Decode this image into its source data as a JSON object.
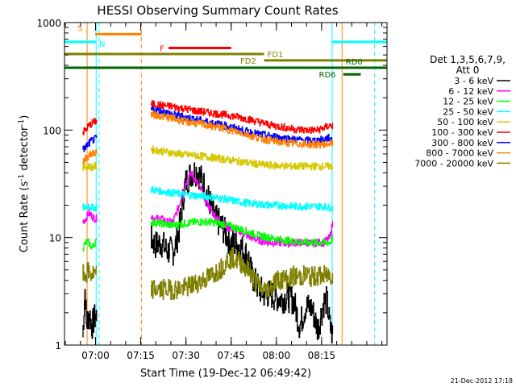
{
  "chart_data": {
    "type": "line",
    "title": "HESSI Observing Summary Count Rates",
    "xlabel": "Start Time (19-Dec-12 06:49:42)",
    "ylabel_prefix": "Count Rate (s",
    "ylabel_sup": "-1",
    "ylabel_mid": " detector",
    "ylabel_sup2": "-1",
    "ylabel_suffix": ")",
    "yscale": "log",
    "x_unit": "minutes after 06:49:42",
    "xlim": [
      0,
      107
    ],
    "ylim": [
      1,
      1000
    ],
    "x_ticks": [
      {
        "value": 10.3,
        "label": "07:00"
      },
      {
        "value": 25.3,
        "label": "07:15"
      },
      {
        "value": 40.3,
        "label": "07:30"
      },
      {
        "value": 55.3,
        "label": "07:45"
      },
      {
        "value": 70.3,
        "label": "08:00"
      },
      {
        "value": 85.3,
        "label": "08:15"
      }
    ],
    "y_ticks": [
      {
        "value": 1,
        "label": "1"
      },
      {
        "value": 10,
        "label": "10"
      },
      {
        "value": 100,
        "label": "100"
      },
      {
        "value": 1000,
        "label": "1000"
      }
    ],
    "legend_header": [
      "Det 1,3,5,6,7,9,",
      "Att 0"
    ],
    "date_stamp": "21-Dec-2012 17:18",
    "gaps": [
      [
        10.8,
        28.6
      ],
      [
        89.0,
        107
      ]
    ],
    "series": [
      {
        "name": "3 - 6 keV",
        "color": "#000000",
        "x": [
          6.0,
          6.8,
          7.2,
          8.2,
          9.0,
          10.0,
          28.6,
          30,
          32,
          34,
          36,
          37,
          38,
          39,
          40,
          42,
          44,
          46,
          48,
          50,
          52,
          54,
          55,
          58,
          61,
          62,
          64,
          66,
          68,
          70,
          72,
          74,
          76,
          78,
          80,
          82,
          84,
          86,
          87,
          88.0,
          89.0
        ],
        "y": [
          1.2,
          3.5,
          1.5,
          2.0,
          1.5,
          1.8,
          10,
          8.5,
          9,
          7.5,
          7.5,
          9,
          12,
          20,
          32,
          40,
          42,
          32,
          22,
          15,
          13,
          10,
          9,
          8.5,
          6.5,
          4.5,
          3.5,
          3,
          3,
          2.8,
          2.7,
          2.8,
          2.6,
          1.5,
          2.3,
          2.2,
          1.4,
          2.5,
          2.6,
          1.5,
          1.2
        ]
      },
      {
        "name": "6 - 12 keV",
        "color": "#ff00ff",
        "x": [
          6.0,
          7.0,
          8.0,
          9.0,
          10.0,
          28.6,
          30,
          32,
          34,
          36,
          38,
          40,
          42,
          44,
          46,
          48,
          50,
          52,
          54,
          56,
          58,
          60,
          62,
          64,
          66,
          68,
          70,
          72,
          74,
          76,
          78,
          80,
          82,
          84,
          86,
          88.0,
          89.0
        ],
        "y": [
          14,
          15,
          17,
          16,
          15,
          16,
          15,
          15,
          14,
          14,
          20,
          32,
          40,
          32,
          25,
          19,
          15.5,
          14,
          12.5,
          12,
          11.5,
          10.5,
          10,
          9.5,
          9.2,
          9,
          9,
          9,
          8.8,
          9,
          9,
          9,
          8.8,
          9,
          9,
          10,
          14
        ]
      },
      {
        "name": "12 - 25 keV",
        "color": "#00ff00",
        "x": [
          6.0,
          7.0,
          8.0,
          9.0,
          10.0,
          28.6,
          32,
          36,
          40,
          44,
          48,
          52,
          56,
          60,
          64,
          68,
          72,
          76,
          80,
          84,
          86,
          88.0,
          89.0
        ],
        "y": [
          8,
          9,
          9,
          8,
          9,
          14,
          13.5,
          13,
          13.5,
          14,
          14,
          13.5,
          12.5,
          11.5,
          10.5,
          10,
          9.5,
          9.2,
          9,
          9,
          9,
          9,
          10
        ]
      },
      {
        "name": "25 - 50 keV",
        "color": "#00ffff",
        "x": [
          6.0,
          7.0,
          8.0,
          9.0,
          10.0,
          28.6,
          32,
          36,
          40,
          44,
          48,
          52,
          56,
          60,
          64,
          68,
          72,
          76,
          80,
          84,
          86,
          88.0,
          89.0
        ],
        "y": [
          19,
          19,
          20,
          19,
          19,
          28,
          27,
          26,
          25,
          24.5,
          24,
          23,
          22,
          21,
          20.5,
          20,
          20,
          19.5,
          19.5,
          19.5,
          19.5,
          19,
          19
        ]
      },
      {
        "name": "50 - 100 keV",
        "color": "#d4c800",
        "x": [
          6.0,
          7.0,
          8.0,
          9.0,
          10.0,
          28.6,
          32,
          36,
          40,
          44,
          48,
          52,
          56,
          60,
          64,
          68,
          72,
          76,
          80,
          84,
          86,
          88.0,
          89.0
        ],
        "y": [
          45,
          46,
          46,
          45,
          46,
          66,
          64,
          61,
          59,
          58,
          56,
          54,
          52,
          50,
          48,
          47,
          46.5,
          46,
          46,
          46,
          46,
          46,
          46
        ]
      },
      {
        "name": "100 - 300 keV",
        "color": "#ff0000",
        "x": [
          6.0,
          7.0,
          8.0,
          9.0,
          10.0,
          28.6,
          32,
          36,
          40,
          44,
          48,
          52,
          56,
          60,
          64,
          68,
          72,
          76,
          80,
          84,
          86,
          88.0,
          89.0
        ],
        "y": [
          95,
          100,
          110,
          115,
          120,
          175,
          170,
          165,
          158,
          150,
          145,
          140,
          135,
          128,
          120,
          112,
          107,
          102,
          100,
          100,
          105,
          110,
          110
        ]
      },
      {
        "name": "300 - 800 keV",
        "color": "#0000ff",
        "x": [
          6.0,
          7.0,
          8.0,
          9.0,
          10.0,
          28.6,
          32,
          36,
          40,
          44,
          48,
          52,
          56,
          60,
          64,
          68,
          72,
          76,
          80,
          84,
          86,
          88.0,
          89.0
        ],
        "y": [
          65,
          70,
          75,
          80,
          82,
          155,
          150,
          140,
          132,
          125,
          118,
          112,
          105,
          98,
          92,
          88,
          85,
          82,
          80,
          80,
          82,
          85,
          80
        ]
      },
      {
        "name": "800 - 7000 keV",
        "color": "#ff8000",
        "x": [
          6.0,
          7.0,
          8.0,
          9.0,
          10.0,
          28.6,
          32,
          36,
          40,
          44,
          48,
          52,
          56,
          60,
          64,
          68,
          72,
          76,
          80,
          84,
          86,
          88.0,
          89.0
        ],
        "y": [
          50,
          55,
          58,
          60,
          62,
          140,
          135,
          128,
          120,
          115,
          110,
          105,
          98,
          92,
          85,
          80,
          77,
          75,
          74,
          73,
          74,
          75,
          75
        ]
      },
      {
        "name": "7000 - 20000 keV",
        "color": "#808000",
        "x": [
          6.0,
          7.0,
          8.0,
          9.0,
          10.0,
          28.6,
          32,
          36,
          40,
          44,
          48,
          52,
          54,
          56,
          58,
          60,
          62,
          64,
          66,
          68,
          70,
          72,
          74,
          76,
          78,
          80,
          82,
          84,
          86,
          88.0,
          89.0
        ],
        "y": [
          4.5,
          4.5,
          4.8,
          4.5,
          4.5,
          3.3,
          3.3,
          3.3,
          3.4,
          3.8,
          4.3,
          5.2,
          6.2,
          6.5,
          6.0,
          5.3,
          4.5,
          3.6,
          3.2,
          3.4,
          4.0,
          4.1,
          4.1,
          4.4,
          4.3,
          4.5,
          4.3,
          4.4,
          4.4,
          4.5,
          4.5
        ]
      }
    ],
    "flags": [
      {
        "label": "S",
        "color": "#ff8000",
        "x1": 10.2,
        "x2": 25.5,
        "y": 780,
        "label_x": 4.3,
        "label_side": "above-left"
      },
      {
        "label": "N",
        "color": "#00ffff",
        "x1": 0,
        "x2": 10.5,
        "y": 660,
        "label_x": 11.5,
        "label_side": "above-right"
      },
      {
        "label": "N",
        "color": "#00ffff",
        "x1": 88.8,
        "x2": 107,
        "y": 660,
        "label_x": null,
        "label_side": "none"
      },
      {
        "label": "F",
        "color": "#ff0000",
        "x1": 34.5,
        "x2": 55.3,
        "y": 580,
        "label_x": 31.6,
        "label_side": "left"
      },
      {
        "label": "FD1",
        "color": "#808000",
        "x1": 0,
        "x2": 66.2,
        "y": 510,
        "label_x": 67.3,
        "label_side": "right"
      },
      {
        "label": "FD2",
        "color": "#808000",
        "x1": 66.2,
        "x2": 107,
        "y": 445,
        "label_x": 58.3,
        "label_side": "left"
      },
      {
        "label": "RD0",
        "color": "#006400",
        "x1": 0,
        "x2": 107,
        "y": 380,
        "label_x": 93.3,
        "label_side": "above-left"
      },
      {
        "label": "RD6",
        "color": "#006400",
        "x1": 92.5,
        "x2": 98.3,
        "y": 330,
        "label_x": 84.4,
        "label_side": "left"
      }
    ],
    "vlines": [
      {
        "x": 7.5,
        "color": "#ff8000",
        "style": "solid"
      },
      {
        "x": 10.5,
        "color": "#00ffff",
        "style": "solid"
      },
      {
        "x": 11.5,
        "color": "#00ffff",
        "style": "dashed"
      },
      {
        "x": 25.5,
        "color": "#ff8000",
        "style": "dashed"
      },
      {
        "x": 88.8,
        "color": "#00ffff",
        "style": "solid"
      },
      {
        "x": 92.1,
        "color": "#ff8000",
        "style": "solid"
      },
      {
        "x": 102.9,
        "color": "#00ffff",
        "style": "dashed"
      }
    ]
  }
}
